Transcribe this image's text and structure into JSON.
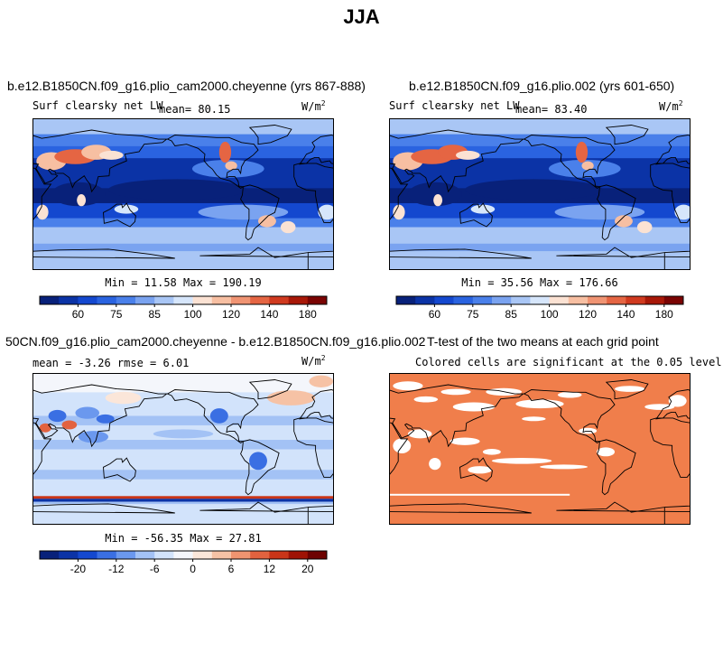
{
  "page": {
    "title": "JJA"
  },
  "colors": {
    "sequential_scale": [
      "#08217a",
      "#0b33a6",
      "#1448cf",
      "#2a63e0",
      "#4a80ea",
      "#7aa3f0",
      "#a9c6f5",
      "#d6e6fb",
      "#fbe2d3",
      "#f7bfa2",
      "#f09473",
      "#e56543",
      "#d03a1f",
      "#a81808",
      "#7a0403"
    ],
    "diverging_scale": [
      "#08217a",
      "#0b33a6",
      "#1448cf",
      "#3a6fe3",
      "#6b98ee",
      "#a3c2f5",
      "#d2e3fb",
      "#f4f6fb",
      "#fbe6d9",
      "#f6c2a5",
      "#ef9470",
      "#e2623f",
      "#c93518",
      "#9f1305",
      "#6e0201"
    ],
    "ttest_fill": "#f07e4b",
    "ocean_deep": "#1a44c7",
    "coastline": "#000000"
  },
  "panels": {
    "top_left": {
      "case_title": "b.e12.B1850CN.f09_g16.plio_cam2000.cheyenne (yrs 867-888)",
      "variable": "Surf clearsky net LW",
      "mean_label": "mean=  80.15",
      "units": "W/m",
      "units_exp": "2",
      "minmax": "Min =  11.58 Max = 190.19",
      "colorbar_ticks": [
        "60",
        "75",
        "85",
        "100",
        "120",
        "140",
        "180"
      ]
    },
    "top_right": {
      "case_title": "b.e12.B1850CN.f09_g16.plio.002 (yrs 601-650)",
      "variable": "Surf clearsky net LW",
      "mean_label": "mean=  83.40",
      "units": "W/m",
      "units_exp": "2",
      "minmax": "Min =  35.56 Max = 176.66",
      "colorbar_ticks": [
        "60",
        "75",
        "85",
        "100",
        "120",
        "140",
        "180"
      ]
    },
    "bottom_left": {
      "case_title": "50CN.f09_g16.plio_cam2000.cheyenne - b.e12.B1850CN.f09_g16.plio.002",
      "stats": "mean =  -3.26    rmse =   6.01",
      "units": "W/m",
      "units_exp": "2",
      "minmax": "Min = -56.35 Max =  27.81",
      "colorbar_ticks": [
        "-20",
        "-12",
        "-6",
        "0",
        "6",
        "12",
        "20"
      ]
    },
    "bottom_right": {
      "case_title": "T-test of the two means at each grid point",
      "subtitle": "Colored cells are significant at the 0.05 level"
    }
  },
  "chart_data": [
    {
      "type": "heatmap",
      "title": "Surf clearsky net LW",
      "subtitle": "b.e12.B1850CN.f09_g16.plio_cam2000.cheyenne (yrs 867-888)",
      "units": "W/m^2",
      "mean": 80.15,
      "min": 11.58,
      "max": 190.19,
      "colorbar_ticks": [
        60,
        75,
        85,
        100,
        120,
        140,
        180
      ],
      "projection": "cylindrical equidistant, global, Pacific-centered"
    },
    {
      "type": "heatmap",
      "title": "Surf clearsky net LW",
      "subtitle": "b.e12.B1850CN.f09_g16.plio.002 (yrs 601-650)",
      "units": "W/m^2",
      "mean": 83.4,
      "min": 35.56,
      "max": 176.66,
      "colorbar_ticks": [
        60,
        75,
        85,
        100,
        120,
        140,
        180
      ],
      "projection": "cylindrical equidistant, global, Pacific-centered"
    },
    {
      "type": "heatmap",
      "title": "50CN.f09_g16.plio_cam2000.cheyenne - b.e12.B1850CN.f09_g16.plio.002",
      "units": "W/m^2",
      "mean": -3.26,
      "rmse": 6.01,
      "min": -56.35,
      "max": 27.81,
      "colorbar_ticks": [
        -20,
        -12,
        -6,
        0,
        6,
        12,
        20
      ],
      "projection": "cylindrical equidistant, global, Pacific-centered"
    },
    {
      "type": "heatmap",
      "title": "T-test of the two means at each grid point",
      "subtitle": "Colored cells are significant at the 0.05 level",
      "significance_level": 0.05
    }
  ]
}
